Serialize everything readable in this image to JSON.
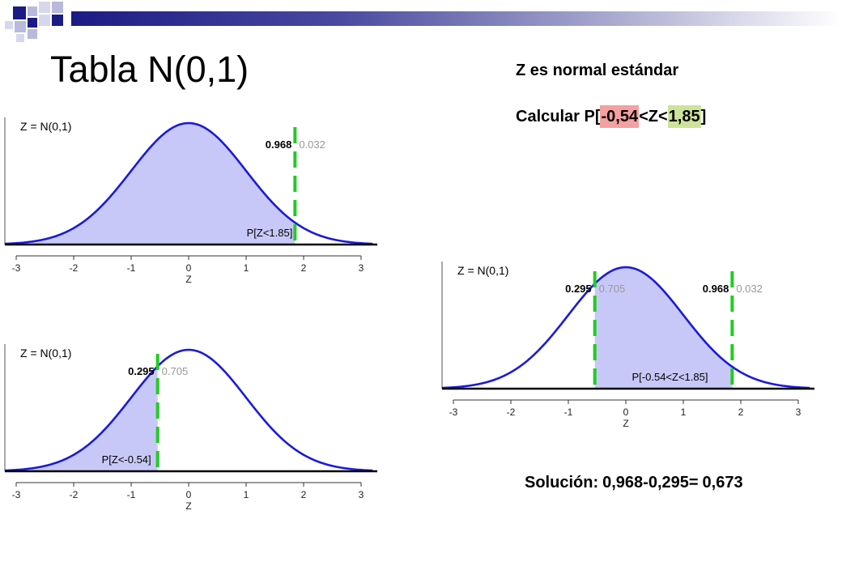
{
  "slide": {
    "title": "Tabla N(0,1)",
    "subtitle": "Z es normal estándar",
    "question": {
      "prefix": "Calcular P[",
      "lower": "-0,54",
      "middle": "<Z<",
      "upper": "1,85",
      "suffix": "]"
    },
    "solution": {
      "label": "Solución:",
      "expression": "0,968-0,295=",
      "result": "0,673"
    }
  },
  "colors": {
    "accent_bar": "#1b1b86",
    "curve": "#1a1adb",
    "fill": "#c8c8f8",
    "cutoff_line": "#22cc22",
    "gray_value": "#999999",
    "highlight_lower": "#f3a0a0",
    "highlight_upper": "#cde39a"
  },
  "chart_data": [
    {
      "type": "area",
      "distribution_label": "Z = N(0,1)",
      "xlabel": "Z",
      "x_ticks": [
        "-3",
        "-2",
        "-1",
        "0",
        "1",
        "2",
        "3"
      ],
      "xlim": [
        -3,
        3
      ],
      "shaded_region": [
        -3.2,
        1.85
      ],
      "cutoffs": [
        1.85
      ],
      "values": [
        {
          "left": "0.968",
          "right": "0.032",
          "at": 1.85
        }
      ],
      "region_label": "P[Z<1.85]"
    },
    {
      "type": "area",
      "distribution_label": "Z = N(0,1)",
      "xlabel": "Z",
      "x_ticks": [
        "-3",
        "-2",
        "-1",
        "0",
        "1",
        "2",
        "3"
      ],
      "xlim": [
        -3,
        3
      ],
      "shaded_region": [
        -3.2,
        -0.54
      ],
      "cutoffs": [
        -0.54
      ],
      "values": [
        {
          "left": "0.295",
          "right": "0.705",
          "at": -0.54
        }
      ],
      "region_label": "P[Z<-0.54]"
    },
    {
      "type": "area",
      "distribution_label": "Z = N(0,1)",
      "xlabel": "Z",
      "x_ticks": [
        "-3",
        "-2",
        "-1",
        "0",
        "1",
        "2",
        "3"
      ],
      "xlim": [
        -3,
        3
      ],
      "shaded_region": [
        -0.54,
        1.85
      ],
      "cutoffs": [
        -0.54,
        1.85
      ],
      "values": [
        {
          "left": "0.295",
          "right": "0.705",
          "at": -0.54
        },
        {
          "left": "0.968",
          "right": "0.032",
          "at": 1.85
        }
      ],
      "region_label": "P[-0.54<Z<1.85]"
    }
  ]
}
